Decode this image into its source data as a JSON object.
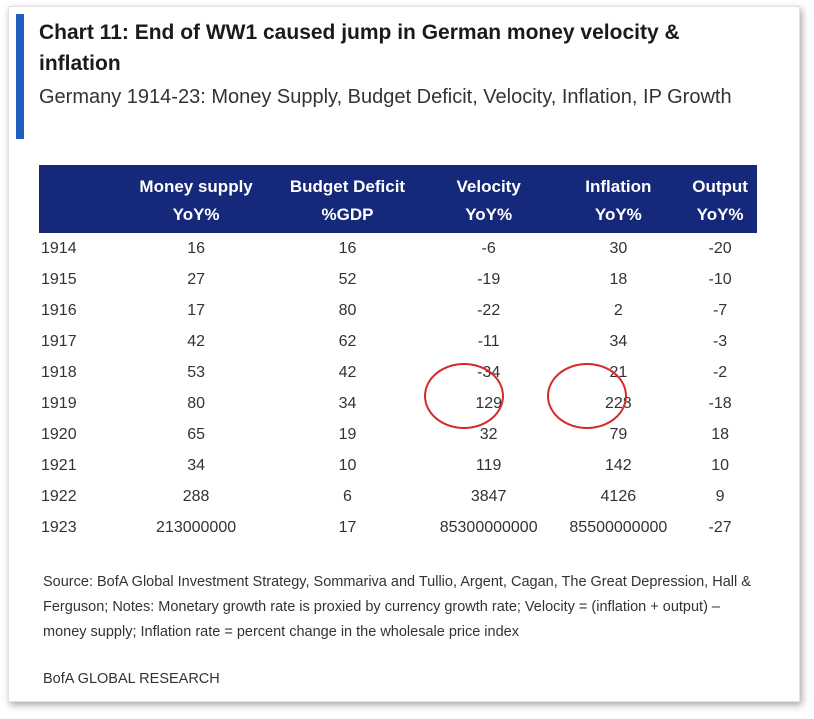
{
  "chart_data": {
    "type": "table",
    "title": "Chart 11: End of WW1 caused jump in German money velocity & inflation",
    "subtitle": "Germany 1914-23: Money Supply, Budget Deficit, Velocity, Inflation, IP Growth",
    "columns": [
      {
        "line1": "",
        "line2": ""
      },
      {
        "line1": "Money supply",
        "line2": "YoY%"
      },
      {
        "line1": "Budget Deficit",
        "line2": "%GDP"
      },
      {
        "line1": "Velocity",
        "line2": "YoY%"
      },
      {
        "line1": "Inflation",
        "line2": "YoY%"
      },
      {
        "line1": "Output",
        "line2": "YoY%"
      }
    ],
    "rows": [
      [
        "1914",
        "16",
        "16",
        "-6",
        "30",
        "-20"
      ],
      [
        "1915",
        "27",
        "52",
        "-19",
        "18",
        "-10"
      ],
      [
        "1916",
        "17",
        "80",
        "-22",
        "2",
        "-7"
      ],
      [
        "1917",
        "42",
        "62",
        "-11",
        "34",
        "-3"
      ],
      [
        "1918",
        "53",
        "42",
        "-34",
        "21",
        "-2"
      ],
      [
        "1919",
        "80",
        "34",
        "129",
        "228",
        "-18"
      ],
      [
        "1920",
        "65",
        "19",
        "32",
        "79",
        "18"
      ],
      [
        "1921",
        "34",
        "10",
        "119",
        "142",
        "10"
      ],
      [
        "1922",
        "288",
        "6",
        "3847",
        "4126",
        "9"
      ],
      [
        "1923",
        "213000000",
        "17",
        "85300000000",
        "85500000000",
        "-27"
      ]
    ],
    "source": "Source: BofA Global Investment Strategy, Sommariva and Tullio, Argent, Cagan, The Great Depression, Hall & Ferguson; Notes: Monetary growth rate is proxied by currency growth rate; Velocity = (inflation + output) – money supply; Inflation rate = percent change in the wholesale price index",
    "footer": "BofA GLOBAL RESEARCH"
  },
  "colors": {
    "header_bg": "#15287a",
    "accent": "#1f5fc2",
    "highlight_circle": "#d22b2b"
  }
}
